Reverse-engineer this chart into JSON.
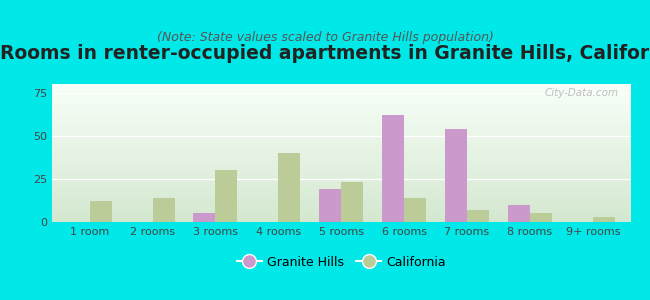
{
  "title": "Rooms in renter-occupied apartments in Granite Hills, California",
  "subtitle": "(Note: State values scaled to Granite Hills population)",
  "categories": [
    "1 room",
    "2 rooms",
    "3 rooms",
    "4 rooms",
    "5 rooms",
    "6 rooms",
    "7 rooms",
    "8 rooms",
    "9+ rooms"
  ],
  "granite_hills": [
    0,
    0,
    5,
    0,
    19,
    62,
    54,
    10,
    0
  ],
  "california": [
    12,
    14,
    30,
    40,
    23,
    14,
    7,
    5,
    3
  ],
  "granite_color": "#cc99cc",
  "california_color": "#bbcc99",
  "ylim": [
    0,
    80
  ],
  "yticks": [
    0,
    25,
    50,
    75
  ],
  "background_color": "#00e8e8",
  "plot_bg_top": "#f8fff8",
  "plot_bg_bottom": "#d4e8d0",
  "bar_width": 0.35,
  "title_fontsize": 13.5,
  "subtitle_fontsize": 9,
  "tick_fontsize": 8,
  "legend_fontsize": 9,
  "watermark": "City-Data.com"
}
